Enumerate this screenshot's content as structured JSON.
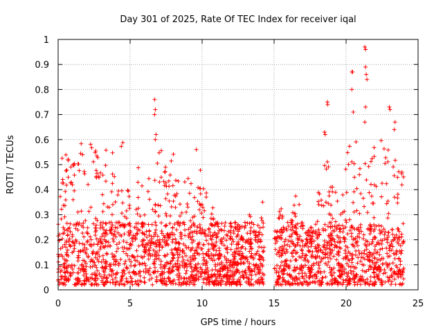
{
  "chart_data": {
    "type": "scatter",
    "title": "Day 301 of 2025, Rate Of TEC Index for receiver iqal",
    "xlabel": "GPS time / hours",
    "ylabel": "ROTI / TECUs",
    "xlim": [
      0,
      25
    ],
    "ylim": [
      0,
      1
    ],
    "xticks": [
      0,
      5,
      10,
      15,
      20,
      25
    ],
    "yticks": [
      0,
      0.1,
      0.2,
      0.3,
      0.4,
      0.5,
      0.6,
      0.7,
      0.8,
      0.9,
      1
    ],
    "ytick_labels": [
      "0",
      "0.1",
      "0.2",
      "0.3",
      "0.4",
      "0.5",
      "0.6",
      "0.7",
      "0.8",
      "0.9",
      "1"
    ],
    "grid": true,
    "marker": "+",
    "color": "#ff0000",
    "envelope": [
      [
        0.0,
        0.45
      ],
      [
        0.5,
        0.6
      ],
      [
        1.0,
        0.56
      ],
      [
        1.5,
        0.6
      ],
      [
        2.0,
        0.55
      ],
      [
        2.5,
        0.62
      ],
      [
        3.0,
        0.5
      ],
      [
        3.5,
        0.62
      ],
      [
        4.0,
        0.52
      ],
      [
        4.5,
        0.6
      ],
      [
        5.0,
        0.4
      ],
      [
        5.5,
        0.5
      ],
      [
        6.0,
        0.55
      ],
      [
        6.5,
        0.45
      ],
      [
        7.0,
        0.62
      ],
      [
        7.5,
        0.52
      ],
      [
        8.0,
        0.55
      ],
      [
        8.5,
        0.45
      ],
      [
        9.0,
        0.5
      ],
      [
        9.5,
        0.56
      ],
      [
        10.0,
        0.5
      ],
      [
        10.5,
        0.4
      ],
      [
        11.0,
        0.3
      ],
      [
        11.5,
        0.25
      ],
      [
        12.0,
        0.25
      ],
      [
        12.5,
        0.3
      ],
      [
        13.0,
        0.32
      ],
      [
        13.5,
        0.3
      ],
      [
        14.0,
        0.35
      ],
      [
        14.3,
        0.28
      ],
      [
        14.5,
        null
      ],
      [
        14.9,
        null
      ],
      [
        15.0,
        0.3
      ],
      [
        15.5,
        0.35
      ],
      [
        16.0,
        0.3
      ],
      [
        16.5,
        0.42
      ],
      [
        17.0,
        0.3
      ],
      [
        17.5,
        0.25
      ],
      [
        18.0,
        0.35
      ],
      [
        18.5,
        0.63
      ],
      [
        19.0,
        0.45
      ],
      [
        19.5,
        0.35
      ],
      [
        20.0,
        0.55
      ],
      [
        20.5,
        0.62
      ],
      [
        21.0,
        0.55
      ],
      [
        21.5,
        0.6
      ],
      [
        22.0,
        0.58
      ],
      [
        22.5,
        0.6
      ],
      [
        23.0,
        0.6
      ],
      [
        23.5,
        0.5
      ],
      [
        24.0,
        0.5
      ]
    ],
    "outliers": [
      [
        6.7,
        0.76
      ],
      [
        6.75,
        0.72
      ],
      [
        6.7,
        0.7
      ],
      [
        6.8,
        0.62
      ],
      [
        6.75,
        0.6
      ],
      [
        18.5,
        0.63
      ],
      [
        18.55,
        0.62
      ],
      [
        18.7,
        0.75
      ],
      [
        18.72,
        0.74
      ],
      [
        20.4,
        0.87
      ],
      [
        20.45,
        0.87
      ],
      [
        20.4,
        0.8
      ],
      [
        20.5,
        0.71
      ],
      [
        21.3,
        0.97
      ],
      [
        21.35,
        0.96
      ],
      [
        21.35,
        0.89
      ],
      [
        21.4,
        0.86
      ],
      [
        21.45,
        0.84
      ],
      [
        21.35,
        0.73
      ],
      [
        21.3,
        0.67
      ],
      [
        23.0,
        0.73
      ],
      [
        23.05,
        0.72
      ],
      [
        23.4,
        0.67
      ],
      [
        23.35,
        0.64
      ],
      [
        14.2,
        0.35
      ],
      [
        9.6,
        0.56
      ]
    ],
    "gap": [
      14.4,
      14.95
    ],
    "point_count": 2600
  }
}
